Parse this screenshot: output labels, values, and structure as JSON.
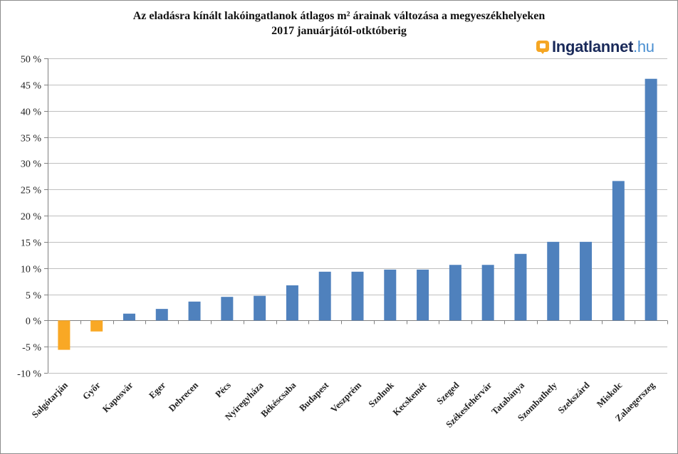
{
  "title_line1": "Az eladásra kínált lakóingatlanok  átlagos m² árainak  változása a megyeszékhelyeken",
  "title_line2": "2017 januárjától-otktóberig",
  "logo": {
    "name": "Ingatlannet",
    "tld": ".hu",
    "icon": "logo-pin-icon",
    "accent": "#f5a623"
  },
  "colors": {
    "positive": "#4f81bd",
    "negative": "#f9a825",
    "grid": "#bfbfbf",
    "axis": "#808080"
  },
  "chart_data": {
    "type": "bar",
    "title": "Az eladásra kínált lakóingatlanok  átlagos m² árainak  változása a megyeszékhelyeken 2017 januárjától-otktóberig",
    "categories": [
      "Salgótarján",
      "Győr",
      "Kaposvár",
      "Eger",
      "Debrecen",
      "Pécs",
      "Nyíregyháza",
      "Békéscsaba",
      "Budapest",
      "Veszprém",
      "Szolnok",
      "Kecskemét",
      "Szeged",
      "Székesfehérvár",
      "Tatabánya",
      "Szombathely",
      "Szekszárd",
      "Miskolc",
      "Zalaegerszeg"
    ],
    "values": [
      -5.6,
      -2.1,
      1.3,
      2.2,
      3.6,
      4.5,
      4.7,
      6.7,
      9.3,
      9.3,
      9.7,
      9.7,
      10.6,
      10.6,
      12.7,
      15.0,
      15.0,
      26.6,
      46.1
    ],
    "ylim": [
      -10,
      50
    ],
    "yticks": [
      -10,
      -5,
      0,
      5,
      10,
      15,
      20,
      25,
      30,
      35,
      40,
      45,
      50
    ],
    "ytick_labels": [
      "-10 %",
      "-5 %",
      "0 %",
      "5 %",
      "10 %",
      "15 %",
      "20 %",
      "25 %",
      "30 %",
      "35 %",
      "40 %",
      "45 %",
      "50 %"
    ],
    "xlabel": "",
    "ylabel": "",
    "grid": true,
    "legend": "none"
  }
}
